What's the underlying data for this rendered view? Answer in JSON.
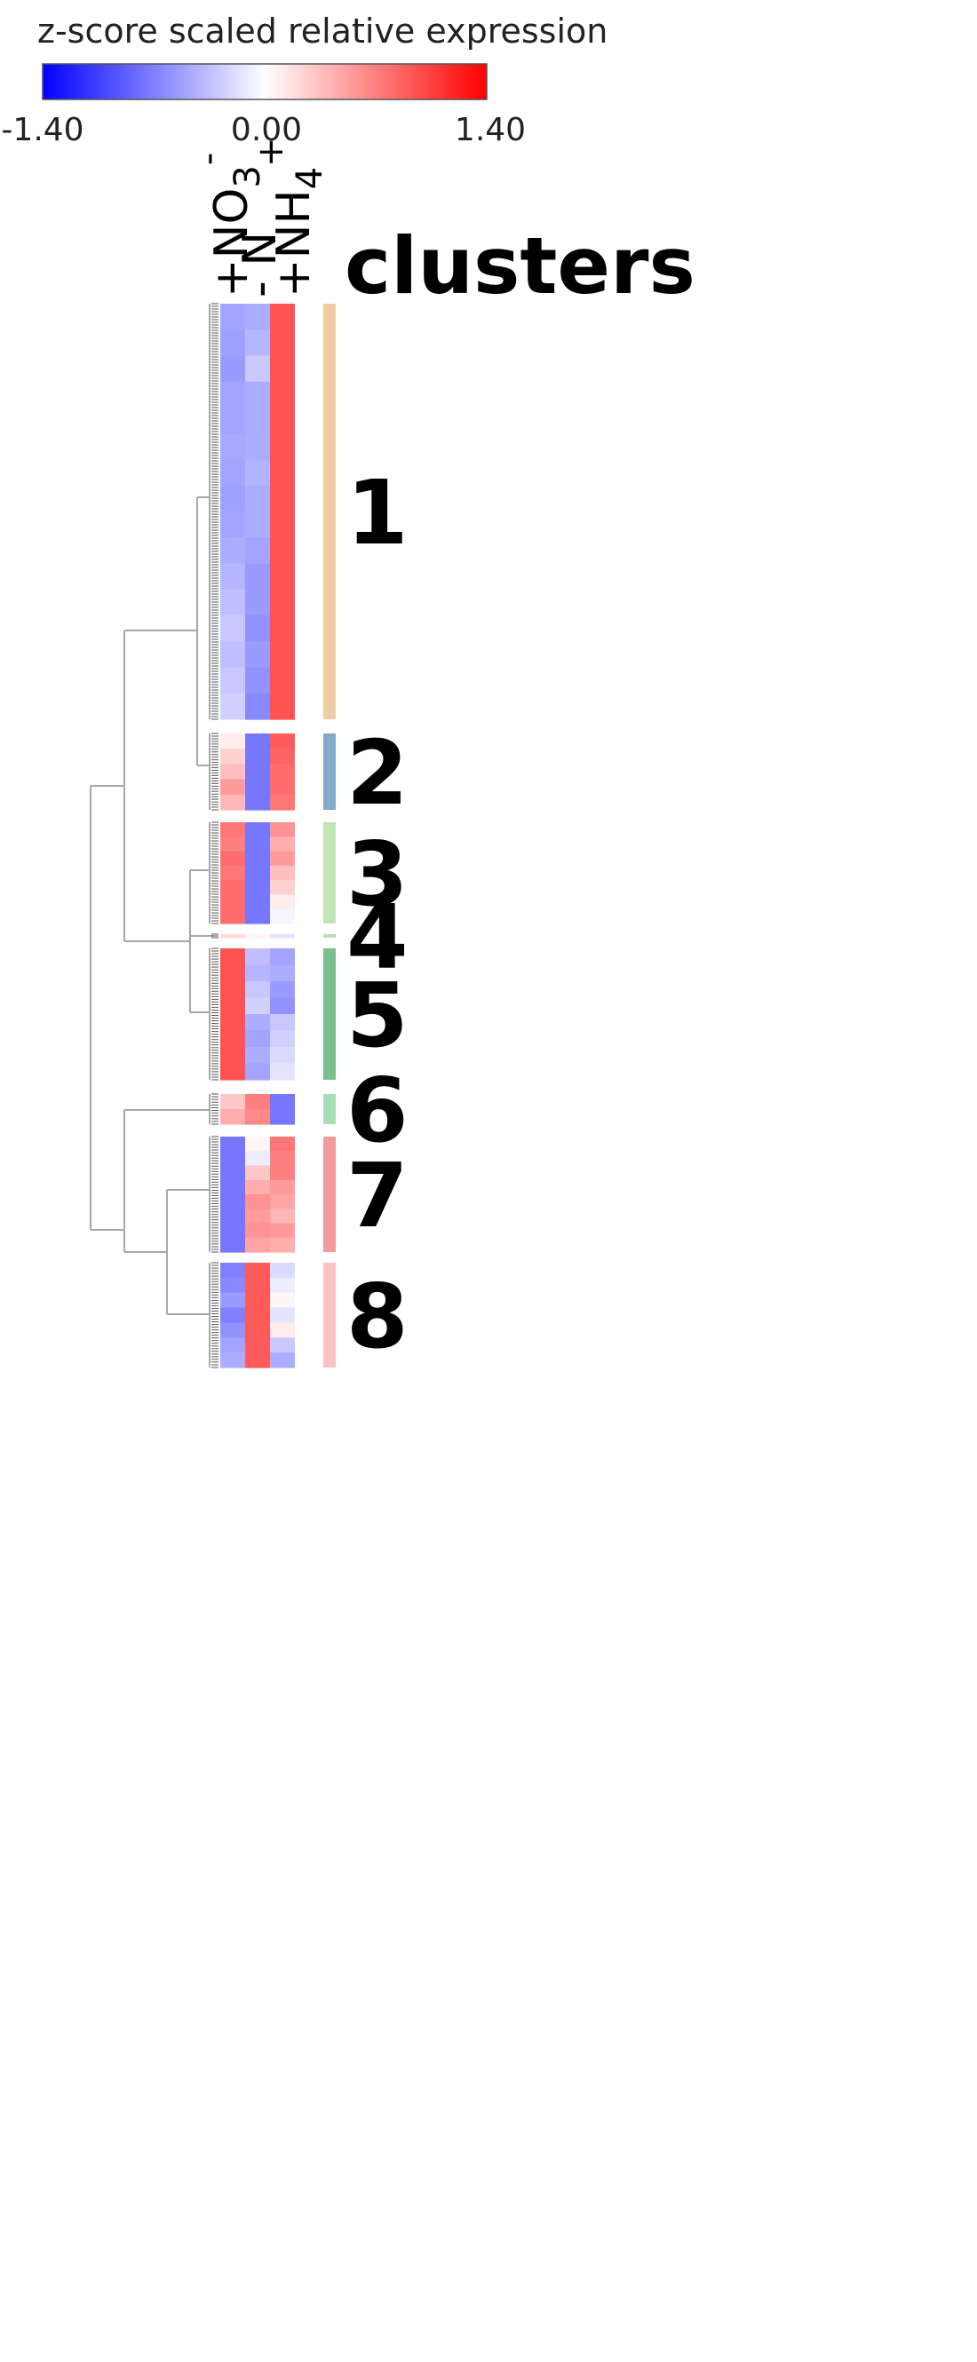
{
  "chart_data": {
    "type": "heatmap",
    "color_scale": {
      "title": "z-score scaled relative expression",
      "min": -1.4,
      "mid": 0.0,
      "max": 1.4,
      "tick_labels": [
        "-1.40",
        "0.00",
        "1.40"
      ],
      "colors": {
        "low": "#0000ff",
        "mid": "#ffffff",
        "high": "#ff0000"
      }
    },
    "columns": [
      {
        "id": "no3",
        "main": "+NO",
        "sub": "3",
        "sup": "-"
      },
      {
        "id": "minus_n",
        "main": "- N",
        "sub": "",
        "sup": ""
      },
      {
        "id": "nh4",
        "main": "+NH",
        "sub": "4",
        "sup": "+"
      }
    ],
    "clusters_title": "clusters",
    "clusters": [
      {
        "label": "1",
        "color": "#eecda4",
        "rows": [
          [
            -0.5,
            -0.45,
            0.95
          ],
          [
            -0.52,
            -0.4,
            0.95
          ],
          [
            -0.55,
            -0.3,
            0.95
          ],
          [
            -0.5,
            -0.45,
            0.95
          ],
          [
            -0.5,
            -0.45,
            0.95
          ],
          [
            -0.48,
            -0.45,
            0.95
          ],
          [
            -0.5,
            -0.42,
            0.95
          ],
          [
            -0.52,
            -0.45,
            0.95
          ],
          [
            -0.5,
            -0.45,
            0.95
          ],
          [
            -0.45,
            -0.5,
            0.95
          ],
          [
            -0.4,
            -0.55,
            0.95
          ],
          [
            -0.35,
            -0.55,
            0.95
          ],
          [
            -0.3,
            -0.6,
            0.95
          ],
          [
            -0.35,
            -0.55,
            0.95
          ],
          [
            -0.3,
            -0.6,
            0.95
          ],
          [
            -0.25,
            -0.65,
            0.95
          ]
        ]
      },
      {
        "label": "2",
        "color": "#86a9c9",
        "rows": [
          [
            0.1,
            -0.75,
            0.9
          ],
          [
            0.25,
            -0.75,
            0.85
          ],
          [
            0.35,
            -0.75,
            0.8
          ],
          [
            0.55,
            -0.75,
            0.8
          ],
          [
            0.4,
            -0.75,
            0.75
          ]
        ]
      },
      {
        "label": "3",
        "color": "#c2e3b5",
        "rows": [
          [
            0.75,
            -0.75,
            0.6
          ],
          [
            0.7,
            -0.75,
            0.45
          ],
          [
            0.8,
            -0.75,
            0.55
          ],
          [
            0.75,
            -0.75,
            0.35
          ],
          [
            0.8,
            -0.75,
            0.25
          ],
          [
            0.8,
            -0.75,
            0.1
          ],
          [
            0.8,
            -0.75,
            -0.05
          ]
        ]
      },
      {
        "label": "4",
        "color": "#b7dcc0",
        "rows": [
          [
            0.2,
            0.05,
            -0.15
          ]
        ]
      },
      {
        "label": "5",
        "color": "#7dbf8c",
        "rows": [
          [
            0.95,
            -0.35,
            -0.5
          ],
          [
            0.95,
            -0.4,
            -0.45
          ],
          [
            0.95,
            -0.3,
            -0.55
          ],
          [
            0.95,
            -0.25,
            -0.6
          ],
          [
            0.95,
            -0.45,
            -0.3
          ],
          [
            0.95,
            -0.5,
            -0.25
          ],
          [
            0.95,
            -0.45,
            -0.2
          ],
          [
            0.95,
            -0.5,
            -0.15
          ]
        ]
      },
      {
        "label": "6",
        "color": "#a8deb4",
        "rows": [
          [
            0.3,
            0.7,
            -0.75
          ],
          [
            0.45,
            0.65,
            -0.75
          ]
        ]
      },
      {
        "label": "7",
        "color": "#f29a9c",
        "rows": [
          [
            -0.75,
            0.05,
            0.75
          ],
          [
            -0.75,
            -0.1,
            0.7
          ],
          [
            -0.75,
            0.3,
            0.7
          ],
          [
            -0.75,
            0.45,
            0.55
          ],
          [
            -0.75,
            0.6,
            0.5
          ],
          [
            -0.75,
            0.55,
            0.4
          ],
          [
            -0.75,
            0.6,
            0.55
          ],
          [
            -0.75,
            0.5,
            0.45
          ]
        ]
      },
      {
        "label": "8",
        "color": "#f9c3c4",
        "rows": [
          [
            -0.7,
            0.9,
            -0.2
          ],
          [
            -0.65,
            0.9,
            -0.1
          ],
          [
            -0.55,
            0.9,
            0.05
          ],
          [
            -0.7,
            0.9,
            -0.15
          ],
          [
            -0.6,
            0.9,
            0.1
          ],
          [
            -0.5,
            0.9,
            -0.3
          ],
          [
            -0.45,
            0.9,
            -0.45
          ]
        ]
      }
    ]
  }
}
